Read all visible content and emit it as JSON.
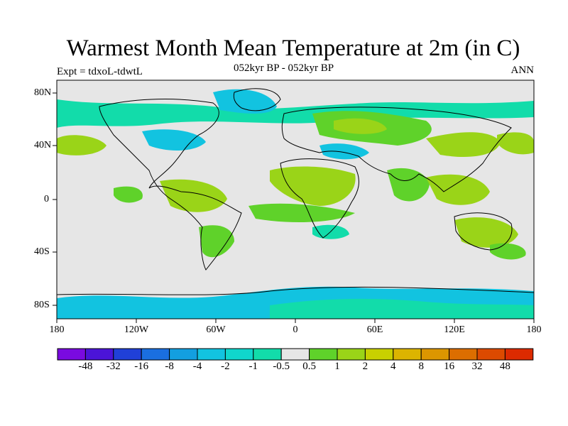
{
  "title": "Warmest Month Mean Temperature at 2m (in C)",
  "subtitle": "052kyr BP - 052kyr BP",
  "left_label": "Expt = tdxoL-tdwtL",
  "right_label": "ANN",
  "lat_labels": [
    "80N",
    "40N",
    "0",
    "40S",
    "80S"
  ],
  "lon_labels": [
    "180",
    "120W",
    "60W",
    "0",
    "60E",
    "120E",
    "180"
  ],
  "colorbar": {
    "colors": [
      "#7a0ae0",
      "#4b14d8",
      "#2040d8",
      "#1a6fe0",
      "#139fe0",
      "#12c3e0",
      "#10d6cc",
      "#12dcaa",
      "#e6e6e6",
      "#5fd22a",
      "#9ad418",
      "#c8d000",
      "#dcb400",
      "#dc9600",
      "#dc6e00",
      "#dc4a00",
      "#dc2a00"
    ],
    "labels": [
      "-48",
      "-32",
      "-16",
      "-8",
      "-4",
      "-2",
      "-1",
      "-0.5",
      "0.5",
      "1",
      "2",
      "4",
      "8",
      "16",
      "32",
      "48"
    ]
  },
  "colors": {
    "background": "#e6e6e6",
    "positive_small": "#5fd22a",
    "positive_mid": "#9ad418",
    "negative_small": "#12dcaa",
    "negative_mid": "#12c3e0"
  }
}
